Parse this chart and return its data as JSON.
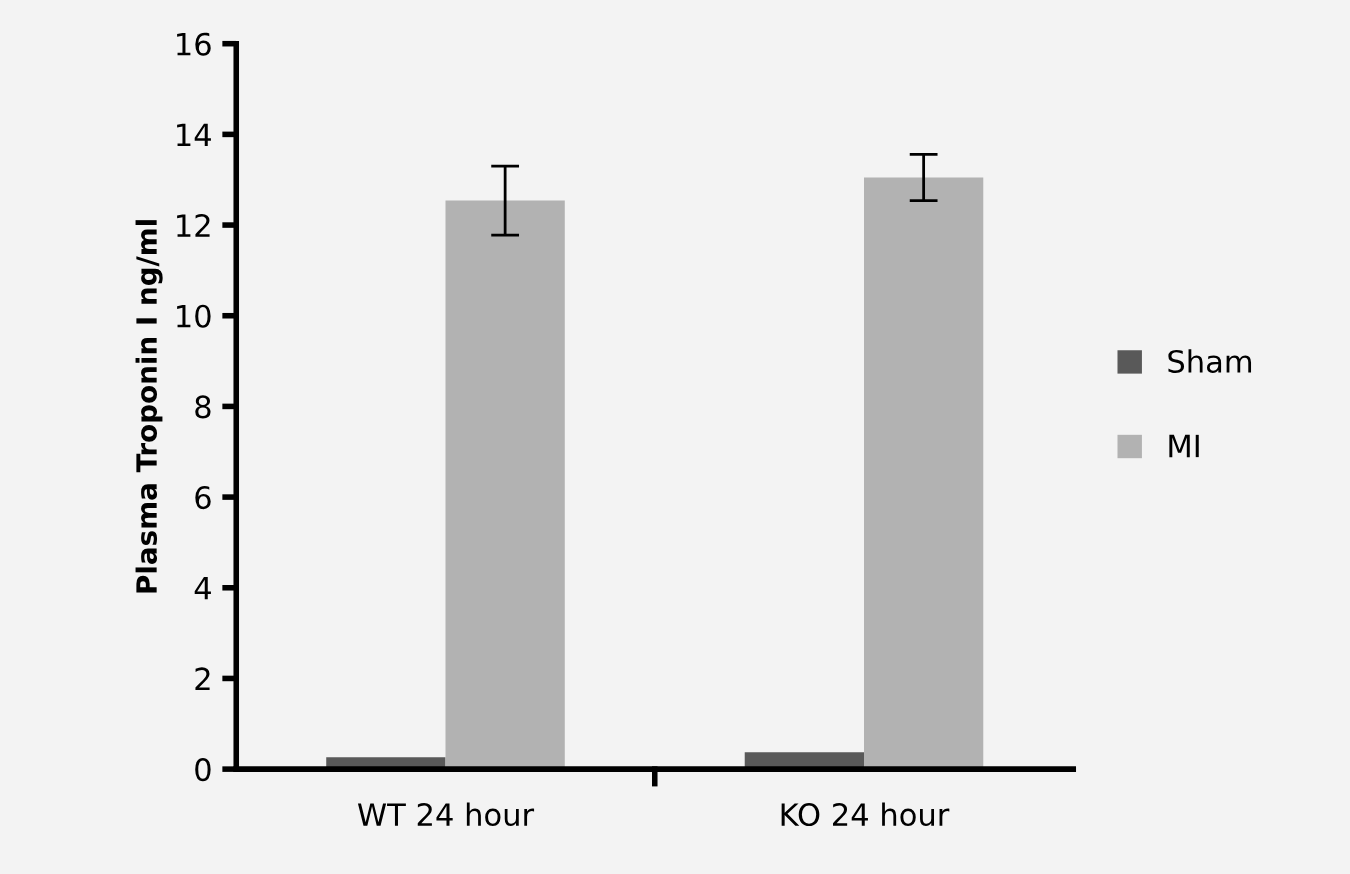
{
  "chart_data": {
    "type": "bar",
    "ylabel": "Plasma Troponin I ng/ml",
    "categories": [
      "WT 24 hour",
      "KO 24 hour"
    ],
    "series": [
      {
        "name": "Sham",
        "color": "#595959",
        "values": [
          0.26,
          0.37
        ]
      },
      {
        "name": "MI",
        "color": "#b2b2b2",
        "values": [
          12.54,
          13.05
        ],
        "errors": [
          0.76,
          0.51
        ]
      }
    ],
    "ylim": [
      0,
      16
    ],
    "yticks": [
      0,
      2,
      4,
      6,
      8,
      10,
      12,
      14,
      16
    ],
    "grid": false,
    "legend": "right"
  }
}
